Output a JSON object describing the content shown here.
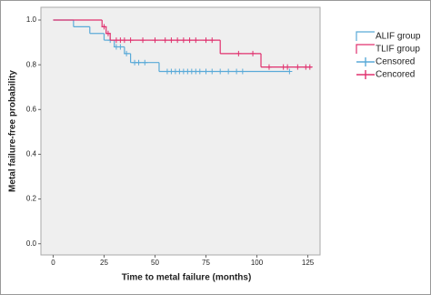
{
  "chart_data": {
    "type": "kaplan-meier",
    "x_label": "Time to metal failure (months)",
    "y_label": "Metal failure-free probability",
    "xlim": [
      -6,
      131
    ],
    "ylim": [
      -0.05,
      1.057
    ],
    "xticks": [
      0,
      25,
      50,
      75,
      100,
      125
    ],
    "yticks": [
      {
        "value": 0,
        "label": "0.0"
      },
      0.2,
      0.4,
      0.6,
      0.8,
      {
        "value": 1,
        "label": "1.0"
      }
    ],
    "series": [
      {
        "name": "ALIF group",
        "censor_name": "Censored",
        "color": "#5aaad8",
        "x": [
          0,
          10,
          18,
          25,
          30,
          35,
          38,
          52,
          116
        ],
        "values": [
          1,
          0.97,
          0.94,
          0.91,
          0.88,
          0.85,
          0.81,
          0.77,
          0.77
        ],
        "censor_x": [
          28,
          31,
          33,
          36,
          40,
          42,
          45,
          56,
          58,
          60,
          62,
          64,
          66,
          68,
          70,
          72,
          75,
          78,
          82,
          86,
          90,
          93,
          116
        ],
        "censor_values": [
          0.91,
          0.88,
          0.88,
          0.85,
          0.81,
          0.81,
          0.81,
          0.77,
          0.77,
          0.77,
          0.77,
          0.77,
          0.77,
          0.77,
          0.77,
          0.77,
          0.77,
          0.77,
          0.77,
          0.77,
          0.77,
          0.77,
          0.77
        ]
      },
      {
        "name": "TLIF group",
        "censor_name": "Cencored",
        "color": "#e0306e",
        "x": [
          0,
          24,
          26,
          28,
          82,
          102,
          127
        ],
        "values": [
          1,
          0.97,
          0.94,
          0.91,
          0.85,
          0.79,
          0.79
        ],
        "censor_x": [
          25,
          27,
          31,
          33,
          35,
          38,
          44,
          50,
          55,
          58,
          61,
          64,
          67,
          70,
          75,
          78,
          91,
          98,
          106,
          113,
          115,
          120,
          124,
          126
        ],
        "censor_values": [
          0.97,
          0.94,
          0.91,
          0.91,
          0.91,
          0.91,
          0.91,
          0.91,
          0.91,
          0.91,
          0.91,
          0.91,
          0.91,
          0.91,
          0.91,
          0.91,
          0.85,
          0.85,
          0.79,
          0.79,
          0.79,
          0.79,
          0.79,
          0.79
        ]
      }
    ]
  }
}
